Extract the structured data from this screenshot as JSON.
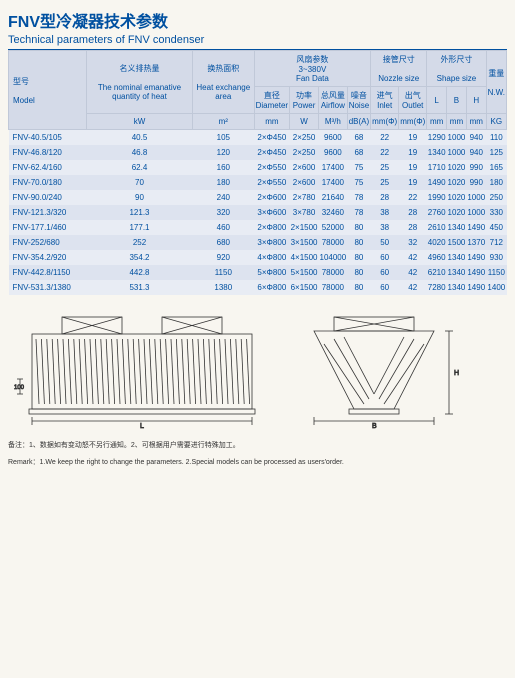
{
  "title_cn": "FNV型冷凝器技术参数",
  "title_en": "Technical parameters of FNV condenser",
  "head": {
    "model_cn": "型号",
    "model_en": "Model",
    "heat_cn": "名义排热量",
    "heat_en": "The nominal emanative quantity of heat",
    "heat_u": "kW",
    "area_cn": "换热面积",
    "area_en": "Heat exchange area",
    "area_u": "m²",
    "fan_cn": "风扇参数",
    "fan_v": "3~380V",
    "fan_en": "Fan Data",
    "dia_cn": "直径",
    "dia_en": "Diameter",
    "dia_u": "mm",
    "pow_cn": "功率",
    "pow_en": "Power",
    "pow_u": "W",
    "air_cn": "总风量",
    "air_en": "Airflow",
    "air_u": "M³/h",
    "noise_cn": "噪音",
    "noise_en": "Noise",
    "noise_u": "dB(A)",
    "nozzle_cn": "接管尺寸",
    "nozzle_en": "Nozzle size",
    "in_cn": "进气",
    "in_en": "Inlet",
    "in_u": "mm(Φ)",
    "out_cn": "出气",
    "out_en": "Outlet",
    "out_u": "mm(Φ)",
    "shape_cn": "外形尺寸",
    "shape_en": "Shape size",
    "L": "L",
    "B": "B",
    "H": "H",
    "mm": "mm",
    "wt_cn": "重量",
    "wt_en": "N.W.",
    "wt_u": "KG"
  },
  "rows": [
    {
      "m": "FNV-40.5/105",
      "kw": "40.5",
      "a": "105",
      "d": "2×Φ450",
      "p": "2×250",
      "af": "9600",
      "n": "68",
      "in": "22",
      "out": "19",
      "L": "1290",
      "B": "1000",
      "H": "940",
      "w": "110"
    },
    {
      "m": "FNV-46.8/120",
      "kw": "46.8",
      "a": "120",
      "d": "2×Φ450",
      "p": "2×250",
      "af": "9600",
      "n": "68",
      "in": "22",
      "out": "19",
      "L": "1340",
      "B": "1000",
      "H": "940",
      "w": "125"
    },
    {
      "m": "FNV-62.4/160",
      "kw": "62.4",
      "a": "160",
      "d": "2×Φ550",
      "p": "2×600",
      "af": "17400",
      "n": "75",
      "in": "25",
      "out": "19",
      "L": "1710",
      "B": "1020",
      "H": "990",
      "w": "165"
    },
    {
      "m": "FNV-70.0/180",
      "kw": "70",
      "a": "180",
      "d": "2×Φ550",
      "p": "2×600",
      "af": "17400",
      "n": "75",
      "in": "25",
      "out": "19",
      "L": "1490",
      "B": "1020",
      "H": "990",
      "w": "180"
    },
    {
      "m": "FNV-90.0/240",
      "kw": "90",
      "a": "240",
      "d": "2×Φ600",
      "p": "2×780",
      "af": "21640",
      "n": "78",
      "in": "28",
      "out": "22",
      "L": "1990",
      "B": "1020",
      "H": "1000",
      "w": "250"
    },
    {
      "m": "FNV-121.3/320",
      "kw": "121.3",
      "a": "320",
      "d": "3×Φ600",
      "p": "3×780",
      "af": "32460",
      "n": "78",
      "in": "38",
      "out": "28",
      "L": "2760",
      "B": "1020",
      "H": "1000",
      "w": "330"
    },
    {
      "m": "FNV-177.1/460",
      "kw": "177.1",
      "a": "460",
      "d": "2×Φ800",
      "p": "2×1500",
      "af": "52000",
      "n": "80",
      "in": "38",
      "out": "28",
      "L": "2610",
      "B": "1340",
      "H": "1490",
      "w": "450"
    },
    {
      "m": "FNV-252/680",
      "kw": "252",
      "a": "680",
      "d": "3×Φ800",
      "p": "3×1500",
      "af": "78000",
      "n": "80",
      "in": "50",
      "out": "32",
      "L": "4020",
      "B": "1500",
      "H": "1370",
      "w": "712"
    },
    {
      "m": "FNV-354.2/920",
      "kw": "354.2",
      "a": "920",
      "d": "4×Φ800",
      "p": "4×1500",
      "af": "104000",
      "n": "80",
      "in": "60",
      "out": "42",
      "L": "4960",
      "B": "1340",
      "H": "1490",
      "w": "930"
    },
    {
      "m": "FNV-442.8/1150",
      "kw": "442.8",
      "a": "1150",
      "d": "5×Φ800",
      "p": "5×1500",
      "af": "78000",
      "n": "80",
      "in": "60",
      "out": "42",
      "L": "6210",
      "B": "1340",
      "H": "1490",
      "w": "1150"
    },
    {
      "m": "FNV-531.3/1380",
      "kw": "531.3",
      "a": "1380",
      "d": "6×Φ800",
      "p": "6×1500",
      "af": "78000",
      "n": "80",
      "in": "60",
      "out": "42",
      "L": "7280",
      "B": "1340",
      "H": "1490",
      "w": "1400"
    }
  ],
  "remark_cn": "备注：1、数据如有变动怒不另行通知。2、可根据用户需要进行特殊加工。",
  "remark_en": "Remark：1.We keep the right to change the parameters. 2.Special models can be processed as users'order."
}
